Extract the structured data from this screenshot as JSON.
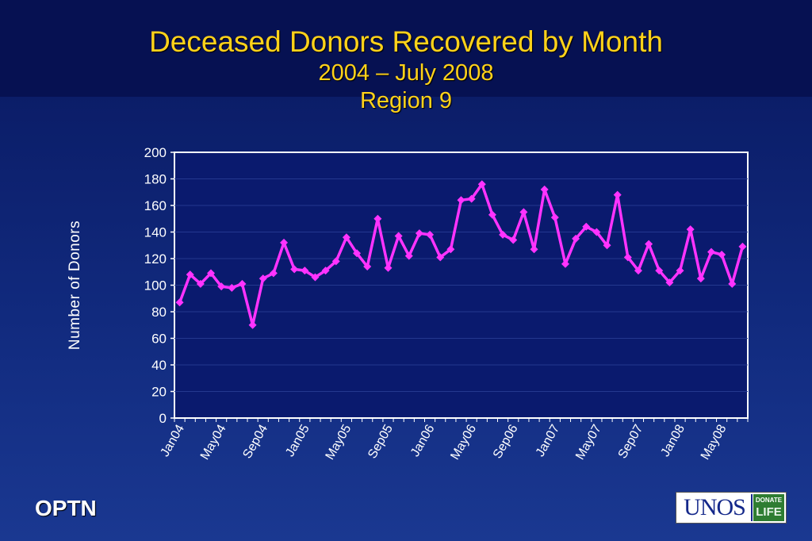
{
  "header": {
    "title": "Deceased Donors Recovered by Month",
    "subtitle": "2004 – July 2008",
    "region": "Region 9"
  },
  "footer": {
    "left_text": "OPTN",
    "logo_text": "UNOS",
    "logo_badge_line1": "DONATE",
    "logo_badge_line2": "LIFE"
  },
  "chart_data": {
    "type": "line",
    "title": "Deceased Donors Recovered by Month",
    "ylabel": "Number of Donors",
    "xlabel": "",
    "ylim": [
      0,
      200
    ],
    "yticks": [
      0,
      20,
      40,
      60,
      80,
      100,
      120,
      140,
      160,
      180,
      200
    ],
    "x_tick_labels": [
      "Jan04",
      "May04",
      "Sep04",
      "Jan05",
      "May05",
      "Sep05",
      "Jan06",
      "May06",
      "Sep06",
      "Jan07",
      "May07",
      "Sep07",
      "Jan08",
      "May08"
    ],
    "x_tick_every": 4,
    "grid": true,
    "line_color": "#ff33ff",
    "plot_background": "#0a1a6e",
    "series": [
      {
        "values": [
          87,
          108,
          101,
          109,
          99,
          98,
          101,
          70,
          105,
          109,
          132,
          112,
          111,
          106,
          111,
          118,
          136,
          124,
          114,
          150,
          113,
          137,
          122,
          139,
          138,
          121,
          127,
          164,
          165,
          176,
          153,
          138,
          134,
          155,
          127,
          172,
          151,
          116,
          135,
          144,
          140,
          130,
          168,
          121,
          111,
          131,
          111,
          102,
          111,
          142,
          105,
          125,
          123,
          101,
          129
        ]
      }
    ]
  }
}
